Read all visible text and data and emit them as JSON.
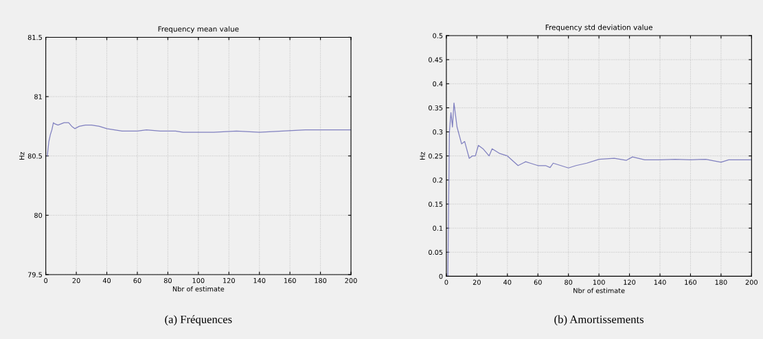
{
  "chart_data": [
    {
      "type": "line",
      "title": "Frequency mean value",
      "xlabel": "Nbr of estimate",
      "ylabel": "Hz",
      "annotations": [
        "(a) Fréquences"
      ],
      "xlim": [
        0,
        200
      ],
      "ylim": [
        79.5,
        81.5
      ],
      "xticks": [
        0,
        20,
        40,
        60,
        80,
        100,
        120,
        140,
        160,
        180,
        200
      ],
      "yticks": [
        79.5,
        80,
        80.5,
        81,
        81.5
      ],
      "grid": true,
      "series": [
        {
          "color": "#7f7fbf",
          "x": [
            1,
            2,
            3,
            4,
            5,
            6,
            8,
            10,
            12,
            15,
            17,
            19,
            22,
            26,
            30,
            35,
            40,
            50,
            60,
            66,
            75,
            85,
            90,
            100,
            110,
            125,
            140,
            155,
            170,
            185,
            200
          ],
          "values": [
            80.5,
            80.62,
            80.68,
            80.72,
            80.78,
            80.77,
            80.76,
            80.77,
            80.78,
            80.78,
            80.75,
            80.73,
            80.75,
            80.76,
            80.76,
            80.75,
            80.73,
            80.71,
            80.71,
            80.72,
            80.71,
            80.71,
            80.7,
            80.7,
            80.7,
            80.71,
            80.7,
            80.71,
            80.72,
            80.72,
            80.72
          ]
        }
      ]
    },
    {
      "type": "line",
      "title": "Frequency std deviation value",
      "xlabel": "Nbr of estimate",
      "ylabel": "Hz",
      "annotations": [
        "(b) Amortissements"
      ],
      "xlim": [
        0,
        200
      ],
      "ylim": [
        0,
        0.5
      ],
      "xticks": [
        0,
        20,
        40,
        60,
        80,
        100,
        120,
        140,
        160,
        180,
        200
      ],
      "yticks": [
        0,
        0.05,
        0.1,
        0.15,
        0.2,
        0.25,
        0.3,
        0.35,
        0.4,
        0.45,
        0.5
      ],
      "grid": true,
      "series": [
        {
          "color": "#7f7fbf",
          "x": [
            1,
            2,
            3,
            4,
            5,
            7,
            10,
            12,
            15,
            17,
            19,
            21,
            24,
            28,
            30,
            35,
            40,
            47,
            52,
            55,
            60,
            65,
            68,
            70,
            75,
            80,
            85,
            92,
            100,
            110,
            118,
            122,
            130,
            140,
            150,
            160,
            170,
            180,
            185,
            200
          ],
          "values": [
            0,
            0.3,
            0.34,
            0.31,
            0.36,
            0.31,
            0.275,
            0.28,
            0.245,
            0.25,
            0.25,
            0.272,
            0.265,
            0.25,
            0.265,
            0.255,
            0.25,
            0.23,
            0.238,
            0.235,
            0.23,
            0.23,
            0.226,
            0.235,
            0.23,
            0.225,
            0.23,
            0.235,
            0.243,
            0.245,
            0.241,
            0.248,
            0.242,
            0.242,
            0.243,
            0.242,
            0.243,
            0.237,
            0.242,
            0.242
          ]
        }
      ]
    }
  ]
}
